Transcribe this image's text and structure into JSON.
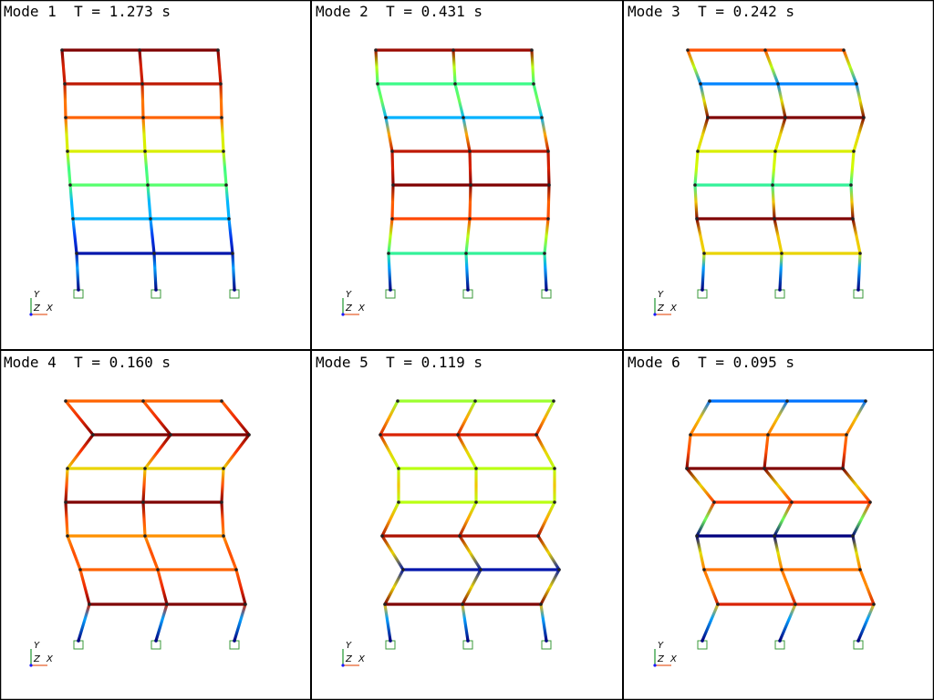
{
  "panels": [
    {
      "mode_label": "Mode 1",
      "period_label": "T = 1.273 s",
      "period_s": 1.273
    },
    {
      "mode_label": "Mode 2",
      "period_label": "T = 0.431 s",
      "period_s": 0.431
    },
    {
      "mode_label": "Mode 3",
      "period_label": "T = 0.242 s",
      "period_s": 0.242
    },
    {
      "mode_label": "Mode 4",
      "period_label": "T = 0.160 s",
      "period_s": 0.16
    },
    {
      "mode_label": "Mode 5",
      "period_label": "T = 0.119 s",
      "period_s": 0.119
    },
    {
      "mode_label": "Mode 6",
      "period_label": "T = 0.095 s",
      "period_s": 0.095
    }
  ],
  "axis_triad": {
    "y_label": "Y",
    "z_label": "Z",
    "x_label": "X"
  },
  "colors": {
    "support": "#3a9a3a",
    "triad_y": "#2e9e3e",
    "triad_x": "#e8602c",
    "colormap": [
      "#00007f",
      "#0040ff",
      "#00c0ff",
      "#40ff80",
      "#d0ff00",
      "#ffb000",
      "#ff3000",
      "#7f0000"
    ]
  }
}
